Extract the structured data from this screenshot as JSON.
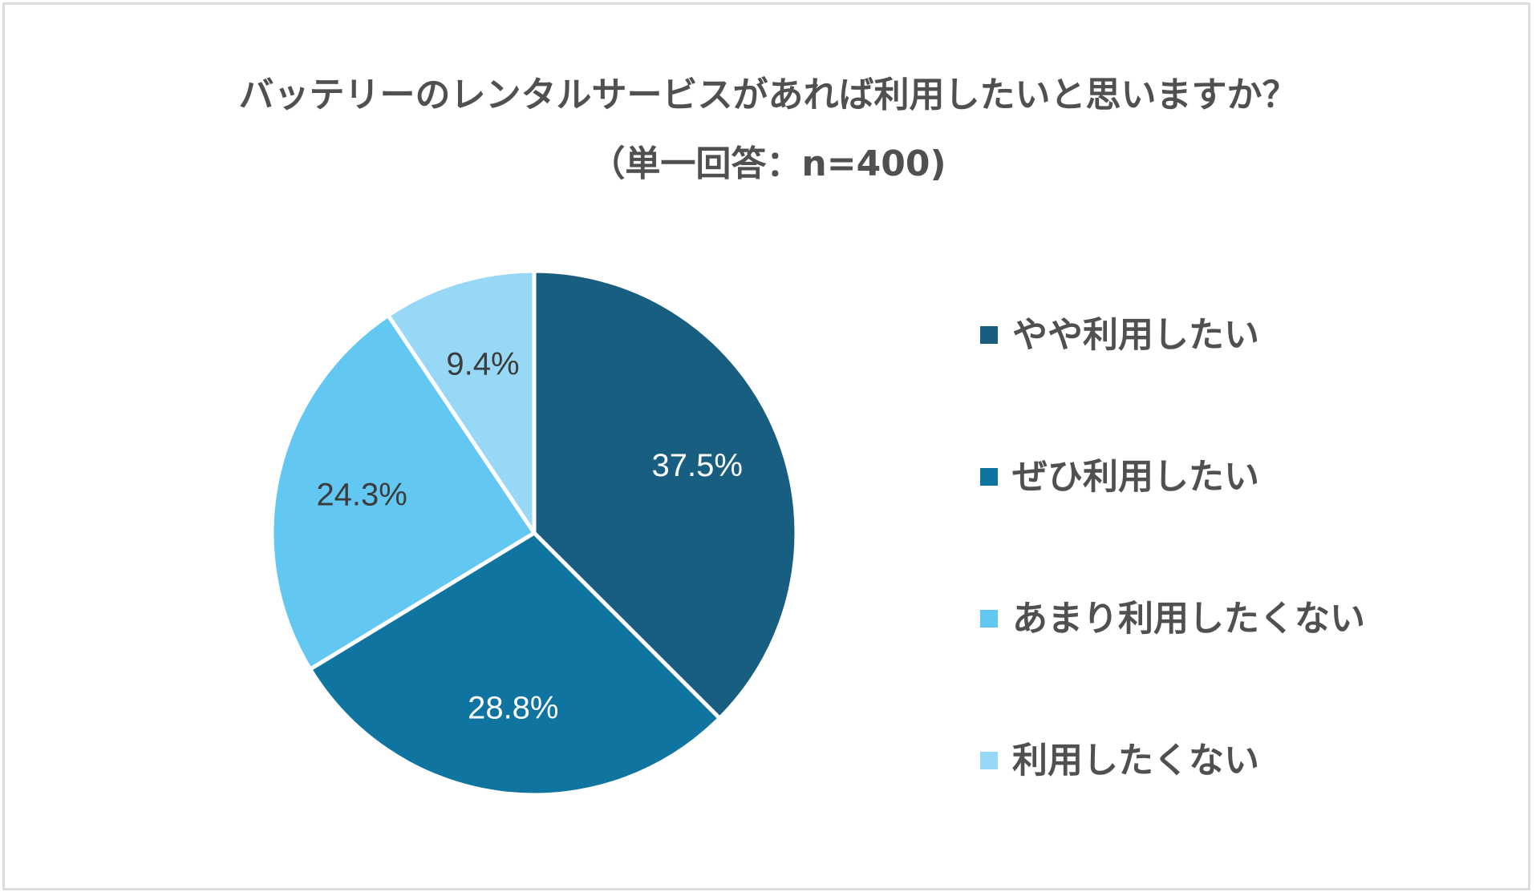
{
  "chart_data": {
    "type": "pie",
    "title": "バッテリーのレンタルサービスがあれば利用したいと思いますか？",
    "subtitle": "（単一回答：n=400)",
    "categories": [
      "やや利用したい",
      "ぜひ利用したい",
      "あまり利用したくない",
      "利用したくない"
    ],
    "values": [
      37.5,
      28.8,
      24.3,
      9.4
    ],
    "labels": [
      "37.5%",
      "28.8%",
      "24.3%",
      "9.4%"
    ],
    "colors": [
      "#175e80",
      "#0f74a0",
      "#62c8f2",
      "#98d8f7"
    ],
    "label_colors": [
      "#ffffff",
      "#ffffff",
      "#3c3c3c",
      "#3c3c3c"
    ],
    "start_angle": "12 o'clock",
    "direction": "clockwise",
    "legend_position": "right"
  }
}
